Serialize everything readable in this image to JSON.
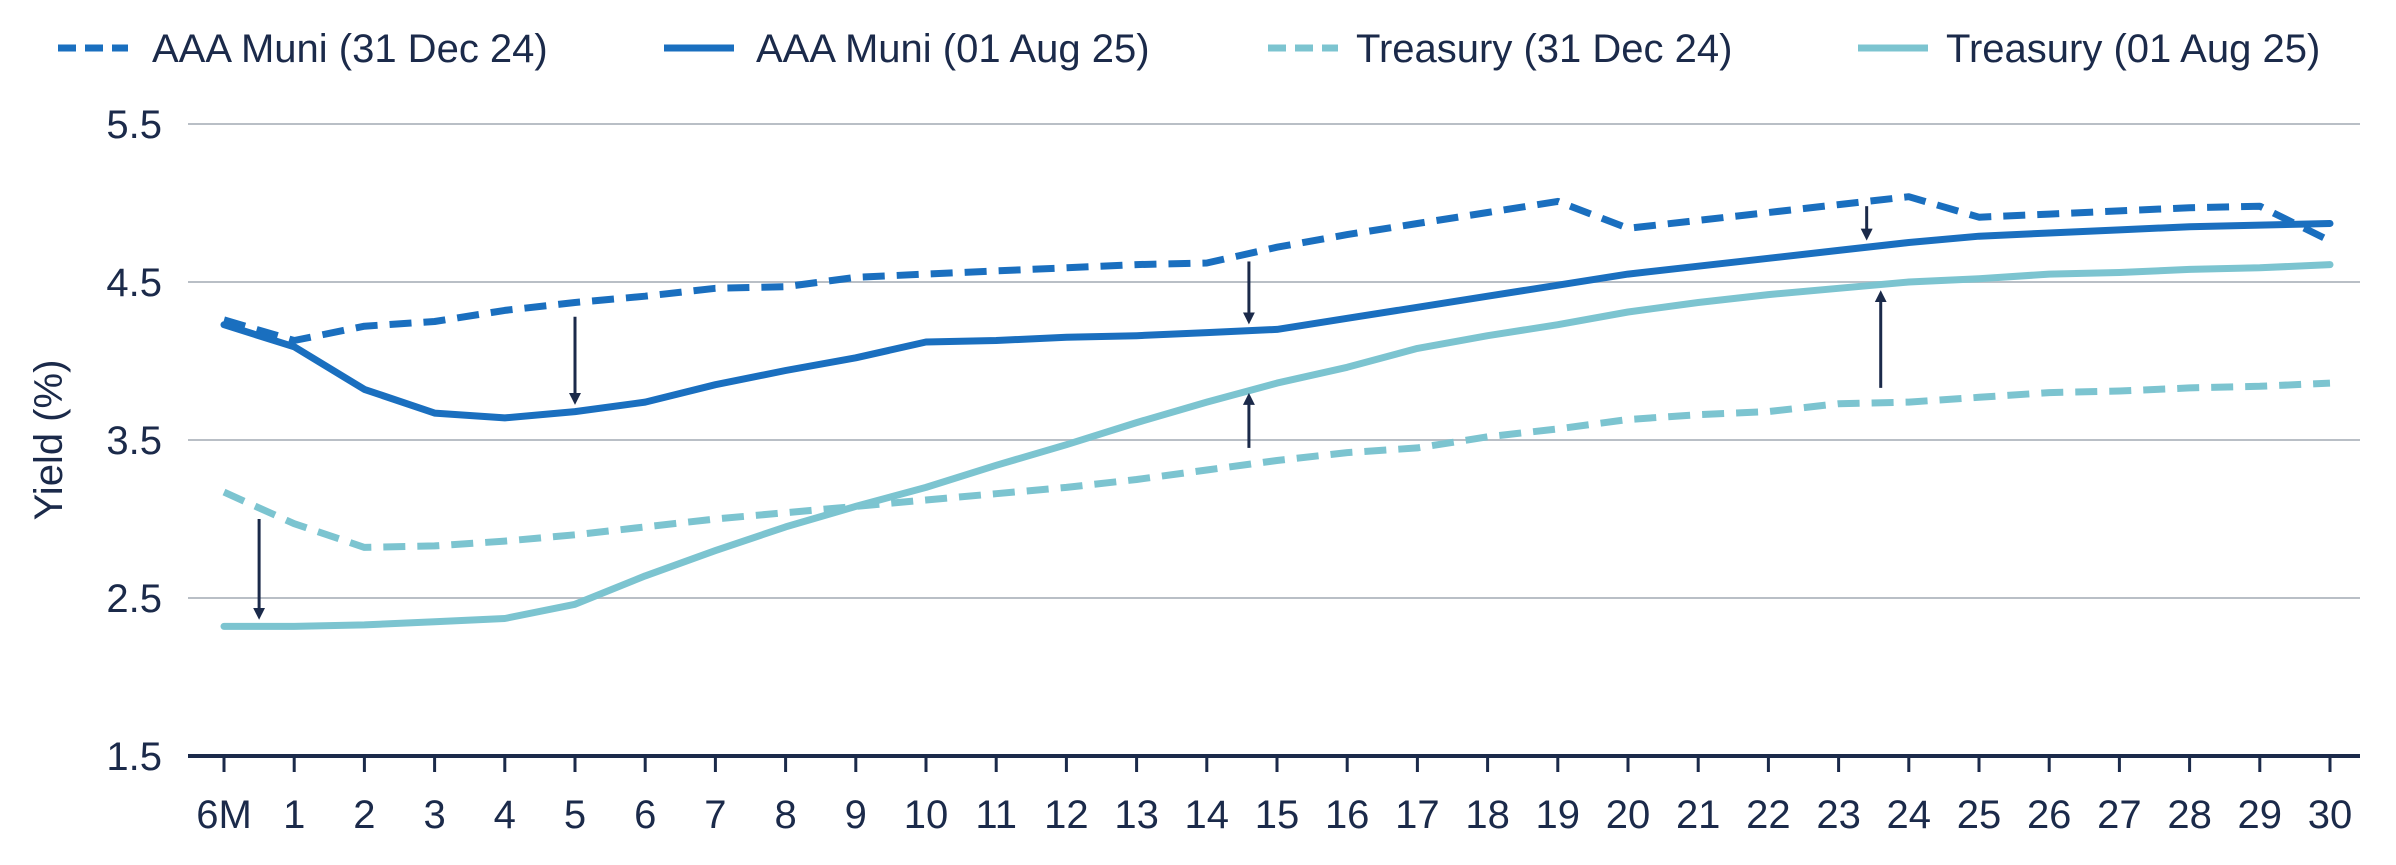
{
  "chart_data": {
    "type": "line",
    "title": "",
    "xlabel": "",
    "ylabel": "Yield (%)",
    "ylim": [
      1.5,
      5.5
    ],
    "yticks": [
      "5.5",
      "4.5",
      "3.5",
      "2.5",
      "1.5"
    ],
    "ytick_values": [
      5.5,
      4.5,
      3.5,
      2.5,
      1.5
    ],
    "grid": true,
    "legend_position": "top",
    "categories": [
      "6M",
      "1",
      "2",
      "3",
      "4",
      "5",
      "6",
      "7",
      "8",
      "9",
      "10",
      "11",
      "12",
      "13",
      "14",
      "15",
      "16",
      "17",
      "18",
      "19",
      "20",
      "21",
      "22",
      "23",
      "24",
      "25",
      "26",
      "27",
      "28",
      "29",
      "30"
    ],
    "series": [
      {
        "name": "AAA Muni (31 Dec 24)",
        "color": "#1a6fbf",
        "style": "dashed",
        "values": [
          4.26,
          4.13,
          4.22,
          4.25,
          4.32,
          4.37,
          4.41,
          4.46,
          4.47,
          4.53,
          4.55,
          4.57,
          4.59,
          4.61,
          4.62,
          4.72,
          4.8,
          4.87,
          4.94,
          5.01,
          4.84,
          4.89,
          4.94,
          4.99,
          5.04,
          4.91,
          4.93,
          4.95,
          4.97,
          4.98,
          4.76
        ]
      },
      {
        "name": "AAA Muni (01 Aug 25)",
        "color": "#1a6fbf",
        "style": "solid",
        "values": [
          4.23,
          4.09,
          3.82,
          3.67,
          3.64,
          3.68,
          3.74,
          3.85,
          3.94,
          4.02,
          4.12,
          4.13,
          4.15,
          4.16,
          4.18,
          4.2,
          4.27,
          4.34,
          4.41,
          4.48,
          4.55,
          4.6,
          4.65,
          4.7,
          4.75,
          4.79,
          4.81,
          4.83,
          4.85,
          4.86,
          4.87
        ]
      },
      {
        "name": "Treasury (31 Dec 24)",
        "color": "#7cc4d0",
        "style": "dashed",
        "values": [
          3.17,
          2.97,
          2.82,
          2.83,
          2.86,
          2.9,
          2.95,
          3.0,
          3.04,
          3.08,
          3.12,
          3.16,
          3.2,
          3.25,
          3.31,
          3.37,
          3.42,
          3.45,
          3.52,
          3.57,
          3.63,
          3.66,
          3.68,
          3.73,
          3.74,
          3.77,
          3.8,
          3.81,
          3.83,
          3.84,
          3.86
        ]
      },
      {
        "name": "Treasury (01 Aug 25)",
        "color": "#7cc4d0",
        "style": "solid",
        "values": [
          2.32,
          2.32,
          2.33,
          2.35,
          2.37,
          2.46,
          2.64,
          2.8,
          2.95,
          3.08,
          3.2,
          3.34,
          3.47,
          3.61,
          3.74,
          3.86,
          3.96,
          4.08,
          4.16,
          4.23,
          4.31,
          4.37,
          4.42,
          4.46,
          4.5,
          4.52,
          4.55,
          4.56,
          4.58,
          4.59,
          4.61
        ]
      }
    ],
    "annotations": [
      {
        "type": "arrow",
        "x_index": 5,
        "from": 4.28,
        "to": 3.76
      },
      {
        "type": "arrow",
        "x_index": 14.6,
        "from": 4.63,
        "to": 4.27
      },
      {
        "type": "arrow",
        "x_index": 23.4,
        "from": 4.98,
        "to": 4.8
      },
      {
        "type": "arrow",
        "x_index": 0.5,
        "from": 3.0,
        "to": 2.4
      },
      {
        "type": "arrow",
        "x_index": 14.6,
        "from": 3.45,
        "to": 3.76
      },
      {
        "type": "arrow",
        "x_index": 23.6,
        "from": 3.83,
        "to": 4.41
      }
    ]
  }
}
